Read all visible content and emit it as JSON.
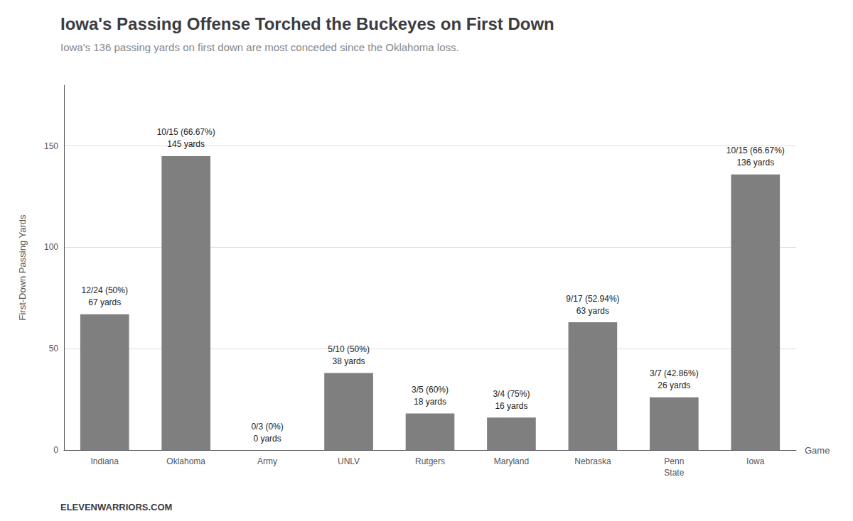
{
  "chart_data": {
    "type": "bar",
    "title": "Iowa's Passing Offense Torched the Buckeyes on First Down",
    "subtitle": "Iowa's 136 passing yards on first down are most conceded since the Oklahoma loss.",
    "watermark": "ELEVENWARRIORS.COM",
    "xlabel": "Game",
    "ylabel": "First-Down Passing Yards",
    "categories": [
      "Indiana",
      "Oklahoma",
      "Army",
      "UNLV",
      "Rutgers",
      "Maryland",
      "Nebraska",
      "Penn\nState",
      "Iowa"
    ],
    "values": [
      67,
      145,
      0,
      38,
      18,
      16,
      63,
      26,
      136
    ],
    "annotations": [
      "12/24 (50%)\n67 yards",
      "10/15 (66.67%)\n145 yards",
      "0/3 (0%)\n0 yards",
      "5/10 (50%)\n38 yards",
      "3/5 (60%)\n18 yards",
      "3/4 (75%)\n16 yards",
      "9/17 (52.94%)\n63 yards",
      "3/7 (42.86%)\n26 yards",
      "10/15 (66.67%)\n136 yards"
    ],
    "color": "#7f7f7f",
    "ylim": [
      0,
      180
    ],
    "yticks": [
      0,
      50,
      100,
      150
    ],
    "grid": true
  }
}
